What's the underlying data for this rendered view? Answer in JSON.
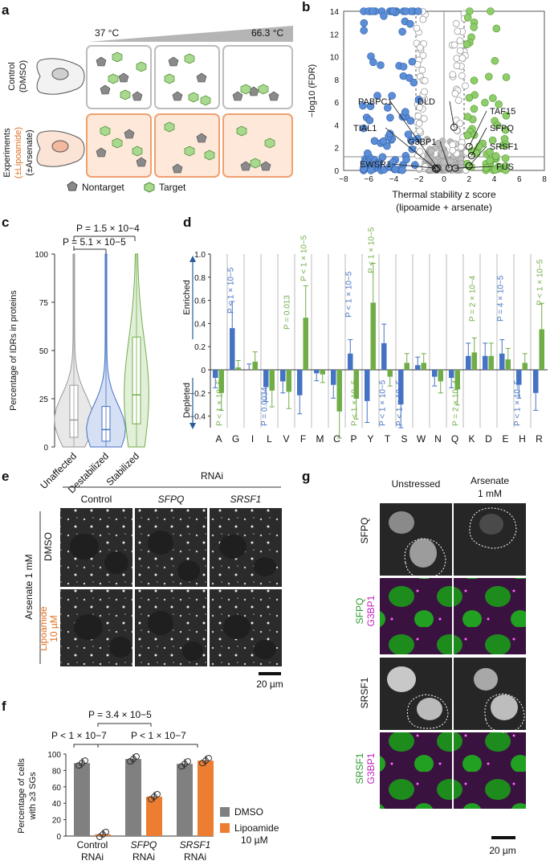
{
  "panels": {
    "a": {
      "label": "a",
      "temp_low": "37 °C",
      "temp_high": "66.3 °C",
      "row1_label_1": "Control",
      "row1_label_2": "(DMSO)",
      "row2_label_1": "Experiments",
      "row2_label_2": "(±Lipoamide)",
      "row2_label_3": "(±Arsenate)",
      "legend_nontarget": "Nontarget",
      "legend_target": "Target"
    },
    "b": {
      "label": "b",
      "ylabel": "−log10 (FDR)",
      "xlabel_1": "Thermal stability z score",
      "xlabel_2": "(lipoamide + arsenate)",
      "xticks": [
        "−8",
        "−6",
        "−4",
        "−2",
        "0",
        "2",
        "4",
        "6",
        "8"
      ],
      "yticks": [
        "0",
        "2",
        "4",
        "6",
        "8",
        "10",
        "12",
        "14"
      ],
      "annotations": [
        "PABPC1",
        "TIAL1",
        "EWSR1",
        "DLD",
        "G3BP1",
        "TAF15",
        "SFPQ",
        "SRSF1",
        "FUS"
      ]
    },
    "c": {
      "label": "c",
      "ylabel": "Percentage of IDRs in proteins",
      "p1": "P = 5.1 × 10−5",
      "p2": "P = 1.5 × 10−4",
      "yticks": [
        "0",
        "25",
        "50",
        "75",
        "100"
      ],
      "categories": [
        "Unaffected",
        "Destabilized",
        "Stabilized"
      ]
    },
    "d": {
      "label": "d",
      "enriched": "Enriched",
      "depleted": "Depleted",
      "yticks": [
        "−0.4",
        "−0.2",
        "0",
        "0.2",
        "0.4",
        "0.6",
        "0.8",
        "1.0"
      ],
      "residues": [
        "A",
        "G",
        "I",
        "L",
        "V",
        "F",
        "M",
        "C",
        "P",
        "Y",
        "T",
        "S",
        "W",
        "N",
        "Q",
        "K",
        "D",
        "E",
        "H",
        "R"
      ],
      "pvals": [
        {
          "text": "P < 1 × 10−5"
        },
        {
          "text": "P < 1 × 10−5"
        },
        {
          "text": "P = 0.0034"
        },
        {
          "text": "P = 0.013"
        },
        {
          "text": "P < 1 × 10−5"
        },
        {
          "text": "P < 1 × 10−5"
        },
        {
          "text": "P < 1 × 10−5"
        },
        {
          "text": "P < 1 × 10−5"
        },
        {
          "text": "P < 1 × 10−5"
        },
        {
          "text": "P < 1 × 10−5"
        },
        {
          "text": "P = 2 × 10−4"
        },
        {
          "text": "P = 2 × 10−4"
        },
        {
          "text": "P = 4 × 10−5"
        },
        {
          "text": "P < 1 × 10−5"
        },
        {
          "text": "P < 1 × 10−5"
        }
      ]
    },
    "e": {
      "label": "e",
      "rnai": "RNAi",
      "cols": [
        "Control",
        "SFPQ",
        "SRSF1"
      ],
      "side": "Arsenate 1 mM",
      "row1": "DMSO",
      "row2_1": "Lipoamide",
      "row2_2": "10 µM",
      "scale": "20 µm"
    },
    "f": {
      "label": "f",
      "ylabel_1": "Percentage of cells",
      "ylabel_2": "with ≥3 SGs",
      "p1": "P < 1 × 10−7",
      "p2": "P = 3.4 × 10−5",
      "p3": "P < 1 × 10−7",
      "yticks": [
        "0",
        "20",
        "40",
        "60",
        "80",
        "100"
      ],
      "groups": [
        {
          "line1": "Control",
          "line2": "RNAi"
        },
        {
          "line1": "SFPQ",
          "line2": "RNAi"
        },
        {
          "line1": "SRSF1",
          "line2": "RNAi"
        }
      ],
      "legend_dmso": "DMSO",
      "legend_lipo_1": "Lipoamide",
      "legend_lipo_2": "10 µM"
    },
    "g": {
      "label": "g",
      "col1": "Unstressed",
      "col2_1": "Arsenate",
      "col2_2": "1 mM",
      "rows": [
        "SFPQ",
        "SFPQ",
        "G3BP1",
        "SRSF1",
        "SRSF1",
        "G3BP1"
      ],
      "scale": "20 µm"
    }
  },
  "chart_data": [
    {
      "type": "bar",
      "panel": "d",
      "title": "",
      "xlabel": "",
      "ylabel": "",
      "ylim": [
        -0.5,
        1.0
      ],
      "categories": [
        "A",
        "G",
        "I",
        "L",
        "V",
        "F",
        "M",
        "C",
        "P",
        "Y",
        "T",
        "S",
        "W",
        "N",
        "Q",
        "K",
        "D",
        "E",
        "H",
        "R"
      ],
      "series": [
        {
          "name": "Destabilized",
          "color": "#4472c4",
          "values": [
            -0.07,
            0.36,
            0.0,
            -0.15,
            -0.1,
            -0.22,
            -0.03,
            -0.13,
            0.14,
            -0.27,
            0.23,
            -0.3,
            0.04,
            -0.06,
            -0.07,
            0.12,
            0.12,
            0.14,
            -0.13,
            -0.2
          ]
        },
        {
          "name": "Stabilized",
          "color": "#70ad47",
          "values": [
            -0.2,
            0.02,
            0.07,
            -0.18,
            -0.19,
            0.45,
            -0.04,
            -0.36,
            -0.25,
            0.58,
            -0.06,
            0.06,
            0.06,
            -0.1,
            -0.17,
            0.15,
            0.12,
            0.09,
            0.06,
            0.35
          ]
        }
      ]
    },
    {
      "type": "bar",
      "panel": "f",
      "title": "",
      "ylabel": "Percentage of cells with ≥3 SGs",
      "ylim": [
        0,
        100
      ],
      "categories": [
        "Control RNAi",
        "SFPQ RNAi",
        "SRSF1 RNAi"
      ],
      "series": [
        {
          "name": "DMSO",
          "color": "#808080",
          "values": [
            89,
            94,
            88
          ]
        },
        {
          "name": "Lipoamide 10 µM",
          "color": "#ed7d31",
          "values": [
            2,
            48,
            92
          ]
        }
      ]
    },
    {
      "type": "violin",
      "panel": "c",
      "ylabel": "Percentage of IDRs in proteins",
      "ylim": [
        0,
        100
      ],
      "categories": [
        "Unaffected",
        "Destabilized",
        "Stabilized"
      ],
      "median": [
        14,
        9,
        27
      ],
      "q1": [
        5,
        3,
        12
      ],
      "q3": [
        32,
        21,
        57
      ]
    }
  ]
}
